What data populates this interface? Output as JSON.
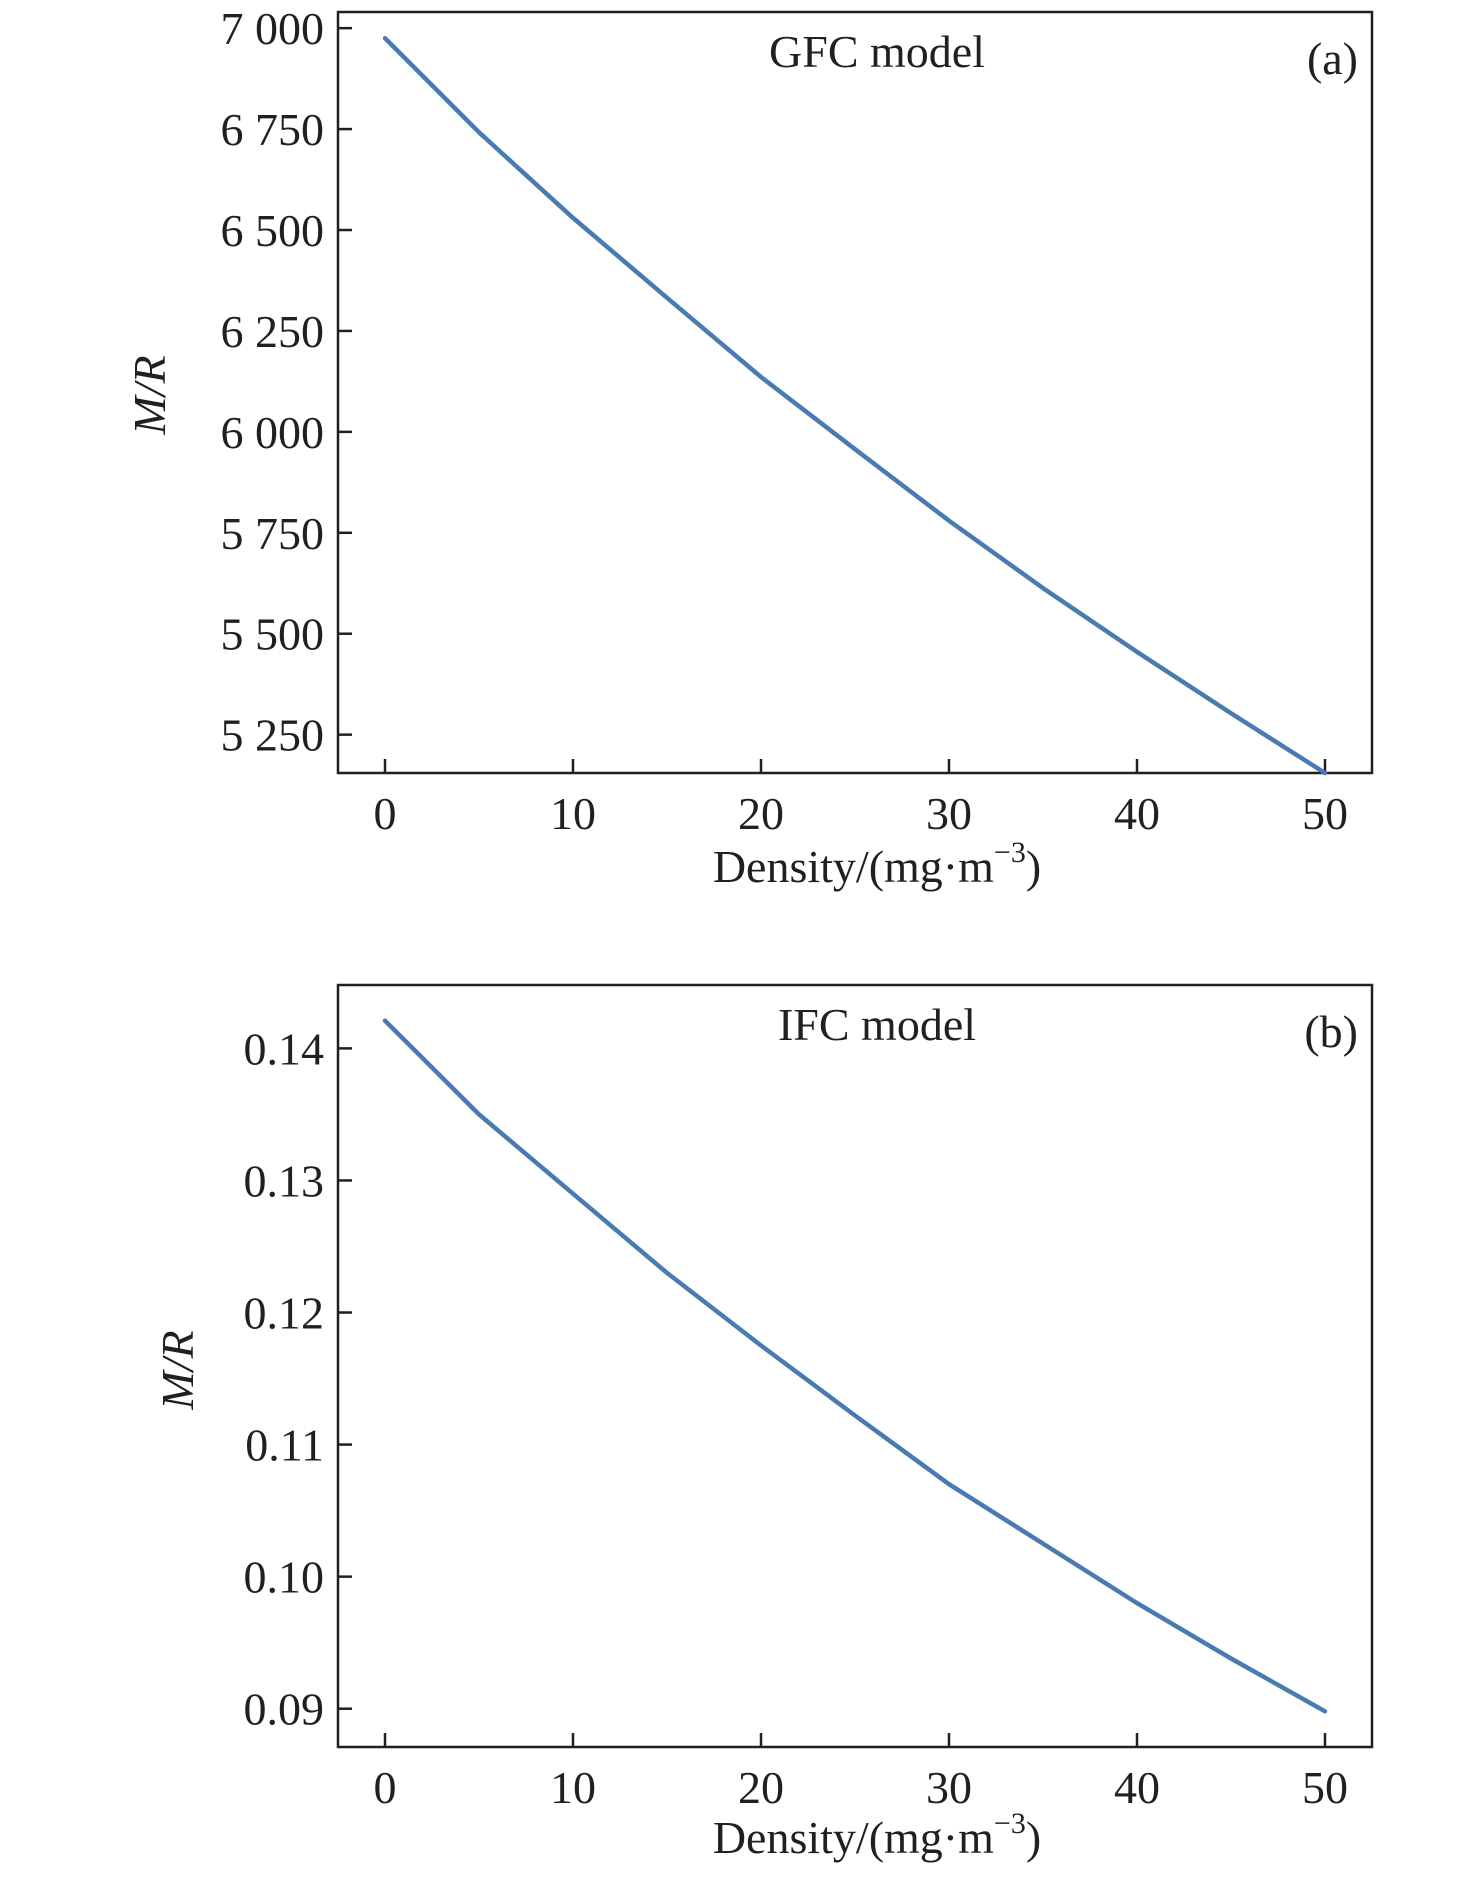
{
  "chart_data": [
    {
      "type": "line",
      "title": "GFC model",
      "panel_label": "(a)",
      "xlabel": "Density/(mg·m",
      "xlabel_sup": "−3",
      "xlabel_close": ")",
      "ylabel": "M/R",
      "xlim": [
        -2.5,
        52.5
      ],
      "ylim": [
        5155,
        7040
      ],
      "xticks": [
        0,
        10,
        20,
        30,
        40,
        50
      ],
      "xtick_labels": [
        "0",
        "10",
        "20",
        "30",
        "40",
        "50"
      ],
      "yticks": [
        5250,
        5500,
        5750,
        6000,
        6250,
        6500,
        6750,
        7000
      ],
      "ytick_labels": [
        "5 250",
        "5 500",
        "5 750",
        "6 000",
        "6 250",
        "6 500",
        "6 750",
        "7 000"
      ],
      "grid": false,
      "line_color": "#4a7bb0",
      "series": [
        {
          "x": [
            0,
            5,
            10,
            15,
            20,
            25,
            30,
            35,
            40,
            45,
            50
          ],
          "y": [
            6975,
            6742,
            6530,
            6332,
            6136,
            5957,
            5780,
            5613,
            5455,
            5303,
            5155
          ]
        }
      ]
    },
    {
      "type": "line",
      "title": "IFC model",
      "panel_label": "(b)",
      "xlabel": "Density/(mg·m",
      "xlabel_sup": "−3",
      "xlabel_close": ")",
      "ylabel": "M/R",
      "xlim": [
        -2.5,
        52.5
      ],
      "ylim": [
        0.0871,
        0.1448
      ],
      "xticks": [
        0,
        10,
        20,
        30,
        40,
        50
      ],
      "xtick_labels": [
        "0",
        "10",
        "20",
        "30",
        "40",
        "50"
      ],
      "yticks": [
        0.09,
        0.1,
        0.11,
        0.12,
        0.13,
        0.14
      ],
      "ytick_labels": [
        "0.09",
        "0.10",
        "0.11",
        "0.12",
        "0.13",
        "0.14"
      ],
      "grid": false,
      "line_color": "#4a7bb0",
      "series": [
        {
          "x": [
            0,
            5,
            10,
            15,
            20,
            25,
            30,
            35,
            40,
            45,
            50
          ],
          "y": [
            0.1421,
            0.135,
            0.129,
            0.123,
            0.1175,
            0.1122,
            0.107,
            0.1025,
            0.098,
            0.0938,
            0.0898
          ]
        }
      ]
    }
  ]
}
